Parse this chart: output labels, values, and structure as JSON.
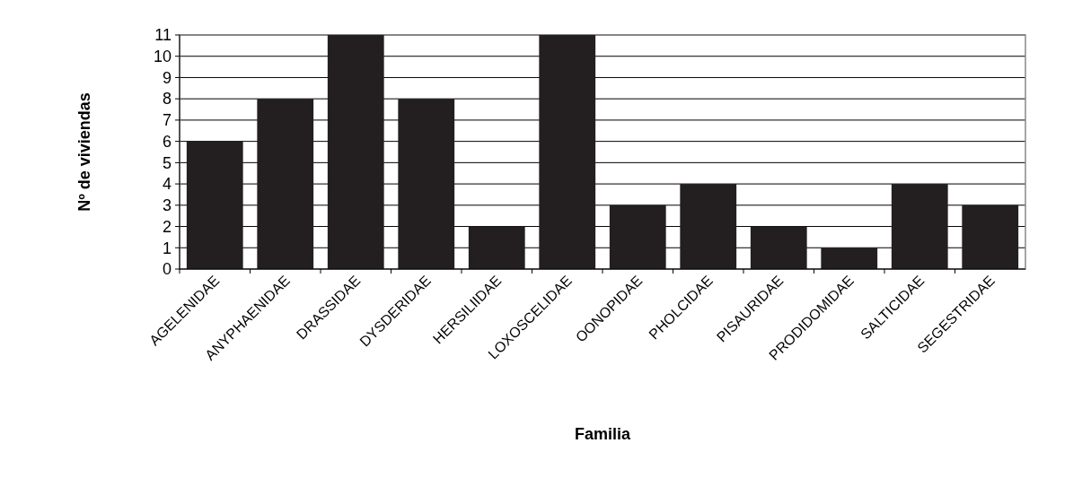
{
  "chart_data": {
    "type": "bar",
    "xlabel": "Familia",
    "ylabel": "Nº de viviendas",
    "categories": [
      "AGELENIDAE",
      "ANYPHAENIDAE",
      "DRASSIDAE",
      "DYSDERIDAE",
      "HERSILIIDAE",
      "LOXOSCELIDAE",
      "OONOPIDAE",
      "PHOLCIDAE",
      "PISAURIDAE",
      "PRODIDOMIDAE",
      "SALTICIDAE",
      "SEGESTRIDAE"
    ],
    "values": [
      6,
      8,
      11,
      8,
      2,
      11,
      3,
      4,
      2,
      1,
      4,
      3
    ],
    "color": "#231f20",
    "ylim": [
      0,
      11
    ],
    "yticks": [
      0,
      1,
      2,
      3,
      4,
      5,
      6,
      7,
      8,
      9,
      10,
      11
    ],
    "grid": "y"
  }
}
